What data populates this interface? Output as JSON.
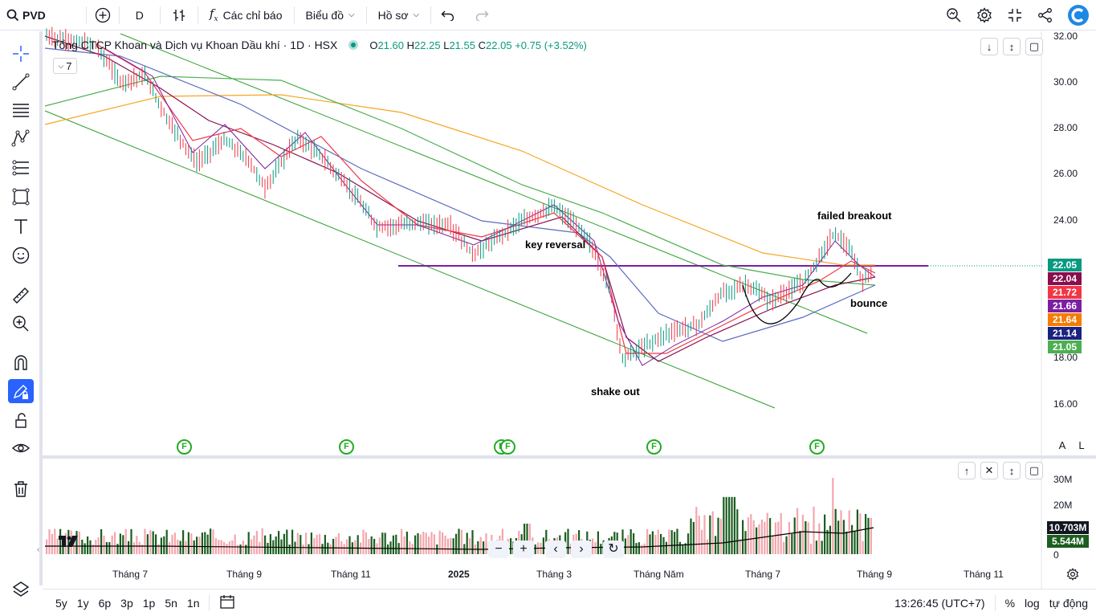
{
  "toolbar": {
    "symbol": "PVD",
    "interval": "D",
    "indicators_label": "Các chỉ báo",
    "chart_type_label": "Biểu đồ",
    "profile_label": "Hồ sơ"
  },
  "legend": {
    "title": "Tổng CTCP Khoan và Dịch vụ Khoan Dầu khí · 1D · HSX",
    "open_label": "O",
    "open": "21.60",
    "high_label": "H",
    "high": "22.25",
    "low_label": "L",
    "low": "21.55",
    "close_label": "C",
    "close": "22.05",
    "change": "+0.75 (+3.52%)",
    "collapsed_count": "7"
  },
  "price_axis": [
    "32.00",
    "30.00",
    "28.00",
    "26.00",
    "24.00",
    "18.00",
    "16.00"
  ],
  "price_labels": [
    {
      "value": "22.05",
      "color": "#089981"
    },
    {
      "value": "22.04",
      "color": "#880e4f"
    },
    {
      "value": "21.72",
      "color": "#f23645"
    },
    {
      "value": "21.66",
      "color": "#7b1fa2"
    },
    {
      "value": "21.64",
      "color": "#f57c00"
    },
    {
      "value": "21.14",
      "color": "#1a237e"
    },
    {
      "value": "21.05",
      "color": "#4caf50"
    }
  ],
  "annotations": {
    "failed_breakout": "failed breakout",
    "key_reversal": "key reversal",
    "bounce": "bounce",
    "shake_out": "shake out"
  },
  "event_marker": "F",
  "scale_buttons": {
    "auto": "A",
    "log": "L"
  },
  "volume_axis": [
    "30M",
    "20M",
    "0"
  ],
  "volume_labels": [
    {
      "value": "10.703M",
      "color": "#131722"
    },
    {
      "value": "5.544M",
      "color": "#1b5e20"
    }
  ],
  "time_axis": [
    "Tháng 7",
    "Tháng 9",
    "Tháng 11",
    "2025",
    "Tháng 3",
    "Tháng Năm",
    "Tháng 7",
    "Tháng 9",
    "Tháng 11"
  ],
  "ranges": [
    "5y",
    "1y",
    "6p",
    "3p",
    "1p",
    "5n",
    "1n"
  ],
  "bottom": {
    "time": "13:26:45 (UTC+7)",
    "percent": "%",
    "log": "log",
    "auto": "tự động"
  },
  "chart_data": {
    "type": "line",
    "description_source": "candlestick price chart with moving averages, channel lines and volume",
    "last_price": 22.05,
    "support_level": 22.05,
    "ylim": [
      15.5,
      32.2
    ]
  }
}
